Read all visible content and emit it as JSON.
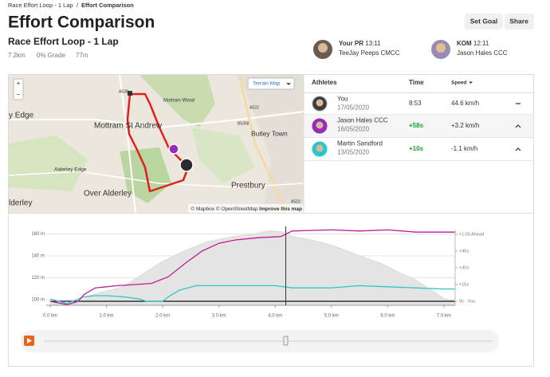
{
  "breadcrumb": {
    "items": [
      "Race Effort Loop - 1 Lap",
      "Effort Comparison"
    ],
    "separator": "/"
  },
  "header": {
    "title": "Effort Comparison",
    "buttons": [
      "Set Goal",
      "Share"
    ]
  },
  "segment": {
    "name": "Race Effort Loop - 1 Lap",
    "stats": [
      "7.2km",
      "0% Grade",
      "77m"
    ]
  },
  "benchmarks": [
    {
      "label": "Your PR",
      "time": "13:11",
      "athlete": "TeeJay Peeps CMCC"
    },
    {
      "label": "KOM",
      "time": "12:11",
      "athlete": "Jason Hales CCC"
    }
  ],
  "map": {
    "layer_button": "Terrain Map",
    "zoom": [
      "+",
      "−"
    ],
    "places": [
      "Mottram Wood",
      "Mottram St Andrew",
      "Butley Town",
      "Alderley Edge",
      "Over Alderley",
      "Prestbury",
      "y Edge",
      "lderley"
    ],
    "roads": [
      "A538",
      "A523",
      "B5358",
      "A523"
    ],
    "attribution": "© Mapbox © OpenStreetMap",
    "improve": "Improve this map"
  },
  "table": {
    "headers": [
      "Athletes",
      "Time",
      "Speed"
    ],
    "rows": [
      {
        "name": "You",
        "date": "17/05/2020",
        "time": "8:53",
        "speed": "44.6 km/h"
      },
      {
        "name": "Jason Hales CCC",
        "date": "16/05/2020",
        "time": "+58s",
        "speed": "+3.2 km/h"
      },
      {
        "name": "Martin Sandford",
        "date": "13/05/2020",
        "time": "+10s",
        "speed": "-1.1 km/h"
      }
    ]
  },
  "chart": {
    "type": "line",
    "xlim": [
      0,
      7.2
    ],
    "ylim": [
      95,
      164
    ],
    "y2lim": [
      -3.6,
      64.3
    ],
    "xticks": [
      {
        "value": 0,
        "label": "0.0 km"
      },
      {
        "value": 1,
        "label": "1.0 km"
      },
      {
        "value": 2,
        "label": "2.0 km"
      },
      {
        "value": 3,
        "label": "3.0 km"
      },
      {
        "value": 4,
        "label": "4.0 km"
      },
      {
        "value": 5,
        "label": "5.0 km"
      },
      {
        "value": 6,
        "label": "6.0 km"
      },
      {
        "value": 7,
        "label": "7.0 km"
      }
    ],
    "yticks": [
      {
        "value": 100,
        "label": "100 m"
      },
      {
        "value": 120,
        "label": "120 m"
      },
      {
        "value": 140,
        "label": "140 m"
      },
      {
        "value": 160,
        "label": "160 m"
      }
    ],
    "y2ticks": [
      {
        "value": 0,
        "label": "0s - You"
      },
      {
        "value": 15,
        "label": "+15s"
      },
      {
        "value": 30,
        "label": "+30s"
      },
      {
        "value": 45,
        "label": "+45s"
      },
      {
        "value": 60,
        "label": "+1:00 Ahead"
      }
    ],
    "grid": true,
    "series": [
      {
        "kind": "area",
        "color": "#e4e4e4",
        "x": [
          0,
          0.3,
          0.5,
          0.7,
          1.0,
          1.3,
          1.6,
          2.0,
          2.4,
          2.8,
          3.0,
          3.3,
          3.6,
          3.9,
          4.1,
          4.3,
          4.6,
          5.0,
          5.5,
          5.9,
          6.2,
          6.5,
          6.8,
          7.0,
          7.2
        ],
        "values": [
          99,
          96,
          97,
          104,
          108,
          112,
          122,
          135,
          145,
          153,
          155,
          158,
          160,
          163,
          162,
          158,
          155,
          150,
          140,
          133,
          125,
          118,
          108,
          101,
          99
        ]
      },
      {
        "kind": "line",
        "axis": "y2",
        "color": "#111111",
        "x": [
          0,
          7.2
        ],
        "values": [
          0,
          0
        ]
      },
      {
        "kind": "line",
        "axis": "y2",
        "color": "#2ec7c9",
        "x": [
          0,
          0.3,
          0.5,
          0.6,
          0.8,
          1.0,
          1.3,
          1.6,
          1.7,
          2.0,
          2.1,
          2.3,
          2.6,
          3.0,
          3.5,
          4.0,
          4.3,
          5.0,
          5.5,
          6.0,
          6.5,
          7.0,
          7.2
        ],
        "values": [
          2,
          -2,
          2,
          4,
          5,
          5,
          4,
          2,
          0,
          0,
          4,
          10,
          14,
          14,
          14,
          14,
          12,
          12,
          14,
          13,
          12,
          11,
          11
        ]
      },
      {
        "kind": "line",
        "axis": "y2",
        "color": "#c2189c",
        "x": [
          0,
          0.3,
          0.5,
          0.6,
          0.8,
          1.2,
          1.8,
          2.1,
          2.4,
          2.7,
          3.0,
          3.3,
          3.7,
          4.1,
          4.3,
          5.0,
          5.5,
          6.0,
          6.5,
          7.2
        ],
        "values": [
          0,
          -3,
          0,
          6,
          12,
          14,
          16,
          22,
          34,
          45,
          52,
          55,
          57,
          58,
          63,
          64,
          63,
          64,
          62,
          62
        ]
      }
    ]
  }
}
